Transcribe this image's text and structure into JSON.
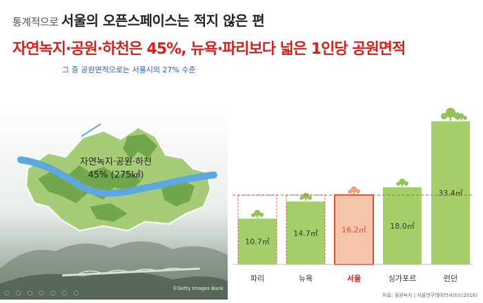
{
  "header": {
    "kicker_small": "통계적으로",
    "kicker_big": "서울의 오픈스페이스는 적지 않은 편",
    "title": "자연녹지·공원·하천은 45%, 뉴욕·파리보다 넓은 1인당 공원면적",
    "subtitle": "그 중 공원면적으로는 서울시의 27% 수준"
  },
  "map": {
    "label_line1": "자연녹지·공원·하천",
    "label_line2": "45% (275㎢)",
    "credit": "©Getty Images Bank"
  },
  "chart_data": {
    "type": "bar",
    "title": "",
    "xlabel": "",
    "ylabel": "",
    "categories": [
      "파리",
      "뉴욕",
      "서울",
      "싱가포르",
      "런던"
    ],
    "values": [
      10.7,
      14.7,
      16.2,
      18.0,
      33.4
    ],
    "value_labels": [
      "10.7㎡",
      "14.7㎡",
      "16.2㎡",
      "18.0㎡",
      "33.4㎡"
    ],
    "highlight": "서울",
    "reference_value": 16.2,
    "ylim": [
      0,
      36
    ],
    "colors": {
      "bar": "#a5cf6b",
      "highlight_bar": "#f6c4a8",
      "highlight_border": "#e04a2c",
      "reference_line": "#e0542f",
      "tree": "#93c256",
      "seoul_tree": "#e9a47e"
    },
    "source": "자료: 공원녹지 | 서울연구데이터서비스(2016)"
  },
  "footer": {
    "social": "○ ○ ○ ○ ○ ○ ○"
  }
}
